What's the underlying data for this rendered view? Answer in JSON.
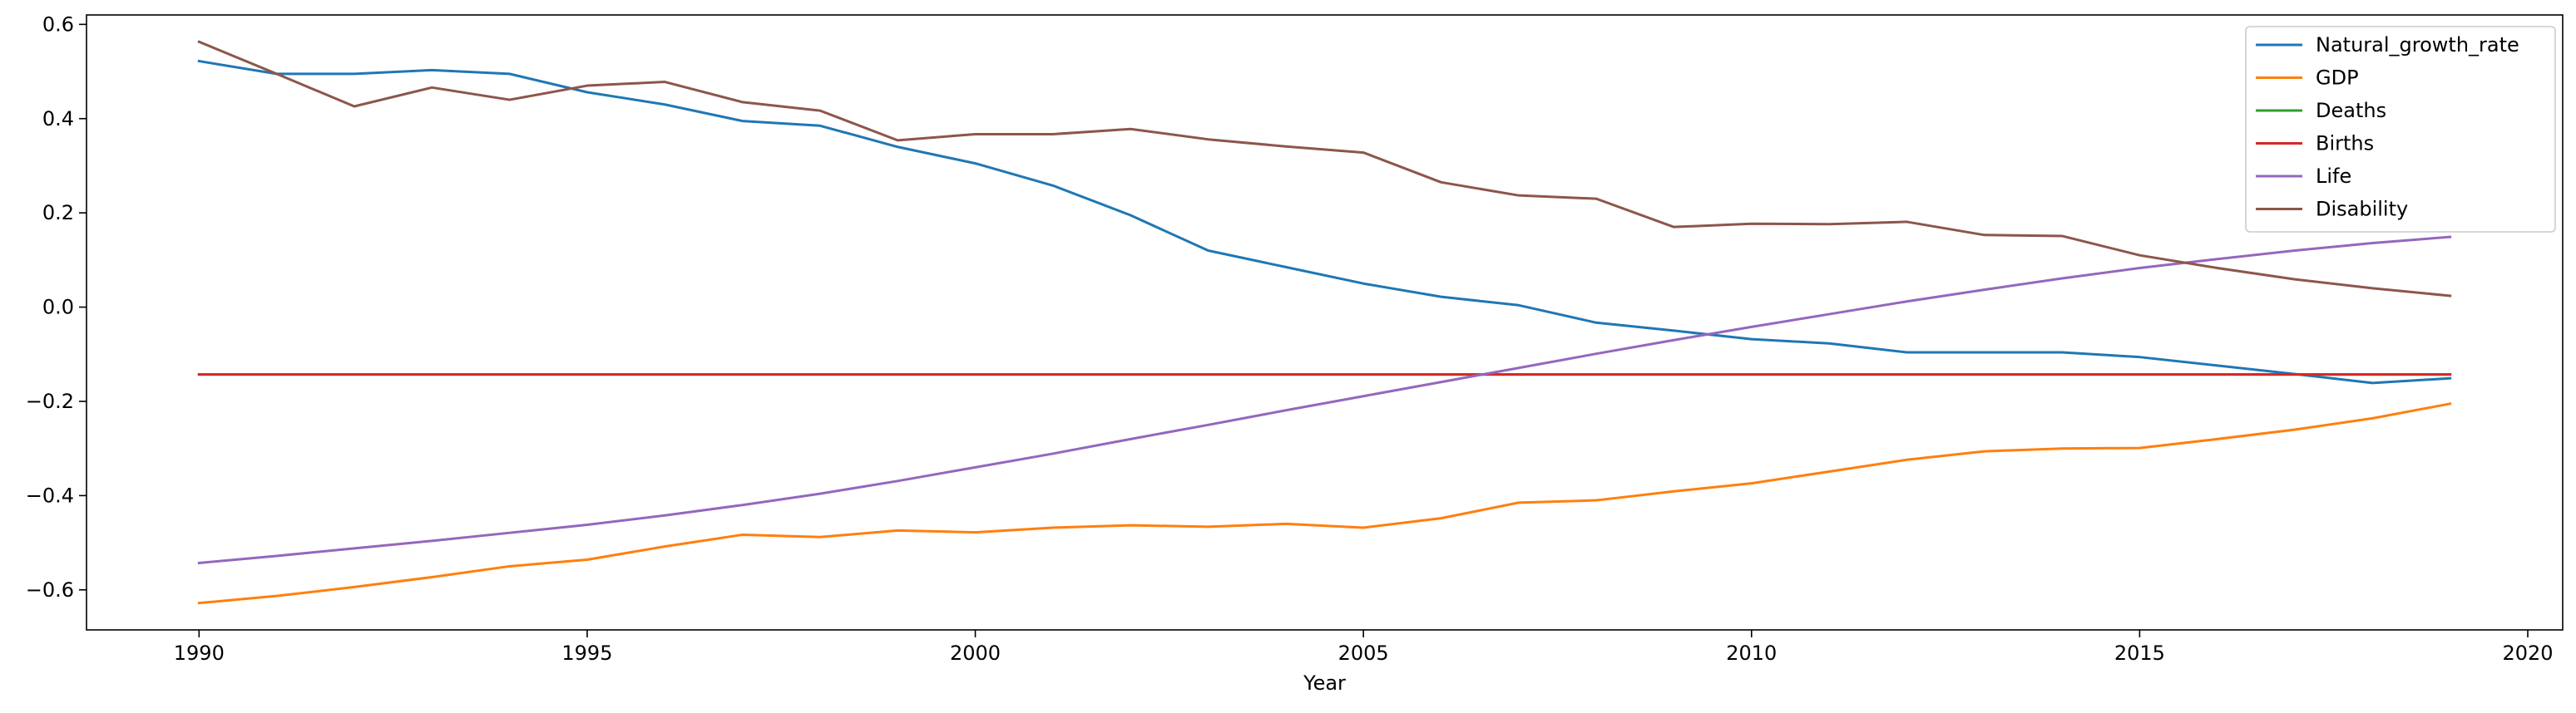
{
  "chart_data": {
    "type": "line",
    "title": "",
    "xlabel": "Year",
    "ylabel": "",
    "xlim": [
      1988.55,
      2020.45
    ],
    "ylim": [
      -0.685,
      0.62
    ],
    "xticks": [
      1990,
      1995,
      2000,
      2005,
      2010,
      2015,
      2020
    ],
    "yticks": [
      -0.6,
      -0.4,
      -0.2,
      0.0,
      0.2,
      0.4,
      0.6
    ],
    "xtick_labels": [
      "1990",
      "1995",
      "2000",
      "2005",
      "2010",
      "2015",
      "2020"
    ],
    "ytick_labels": [
      "−0.6",
      "−0.4",
      "−0.2",
      "0.0",
      "0.2",
      "0.4",
      "0.6"
    ],
    "grid": false,
    "legend_position": "top-right",
    "x": [
      1990,
      1991,
      1992,
      1993,
      1994,
      1995,
      1996,
      1997,
      1998,
      1999,
      2000,
      2001,
      2002,
      2003,
      2004,
      2005,
      2006,
      2007,
      2008,
      2009,
      2010,
      2011,
      2012,
      2013,
      2014,
      2015,
      2016,
      2017,
      2018,
      2019
    ],
    "series": [
      {
        "name": "Natural_growth_rate",
        "color": "#1f77b4",
        "values": [
          0.522,
          0.495,
          0.495,
          0.503,
          0.495,
          0.456,
          0.43,
          0.395,
          0.385,
          0.34,
          0.305,
          0.258,
          0.195,
          0.12,
          0.085,
          0.05,
          0.022,
          0.004,
          -0.033,
          -0.05,
          -0.068,
          -0.077,
          -0.096,
          -0.096,
          -0.096,
          -0.106,
          -0.124,
          -0.142,
          -0.161,
          -0.151
        ]
      },
      {
        "name": "GDP",
        "color": "#ff7f0e",
        "values": [
          -0.628,
          -0.613,
          -0.594,
          -0.573,
          -0.55,
          -0.536,
          -0.508,
          -0.483,
          -0.488,
          -0.474,
          -0.478,
          -0.468,
          -0.463,
          -0.466,
          -0.46,
          -0.468,
          -0.448,
          -0.415,
          -0.41,
          -0.391,
          -0.374,
          -0.349,
          -0.324,
          -0.306,
          -0.3,
          -0.299,
          -0.28,
          -0.26,
          -0.236,
          -0.205
        ]
      },
      {
        "name": "Deaths",
        "color": "#2ca02c",
        "values": [
          -0.143,
          -0.143,
          -0.143,
          -0.143,
          -0.143,
          -0.143,
          -0.143,
          -0.143,
          -0.143,
          -0.143,
          -0.143,
          -0.143,
          -0.143,
          -0.143,
          -0.143,
          -0.143,
          -0.143,
          -0.143,
          -0.143,
          -0.143,
          -0.143,
          -0.143,
          -0.143,
          -0.143,
          -0.143,
          -0.143,
          -0.143,
          -0.143,
          -0.143,
          -0.143
        ]
      },
      {
        "name": "Births",
        "color": "#d62728",
        "values": [
          -0.143,
          -0.143,
          -0.143,
          -0.143,
          -0.143,
          -0.143,
          -0.143,
          -0.143,
          -0.143,
          -0.143,
          -0.143,
          -0.143,
          -0.143,
          -0.143,
          -0.143,
          -0.143,
          -0.143,
          -0.143,
          -0.143,
          -0.143,
          -0.143,
          -0.143,
          -0.143,
          -0.143,
          -0.143,
          -0.143,
          -0.143,
          -0.143,
          -0.143,
          -0.143
        ]
      },
      {
        "name": "Life",
        "color": "#9467bd",
        "values": [
          -0.543,
          -0.528,
          -0.512,
          -0.496,
          -0.479,
          -0.462,
          -0.442,
          -0.42,
          -0.396,
          -0.369,
          -0.34,
          -0.311,
          -0.28,
          -0.25,
          -0.219,
          -0.189,
          -0.159,
          -0.129,
          -0.099,
          -0.07,
          -0.042,
          -0.015,
          0.012,
          0.037,
          0.061,
          0.083,
          0.102,
          0.12,
          0.136,
          0.149
        ]
      },
      {
        "name": "Disability",
        "color": "#8c564b",
        "values": [
          0.563,
          0.495,
          0.426,
          0.466,
          0.44,
          0.47,
          0.478,
          0.435,
          0.417,
          0.354,
          0.367,
          0.367,
          0.378,
          0.356,
          0.341,
          0.328,
          0.265,
          0.237,
          0.23,
          0.17,
          0.177,
          0.176,
          0.181,
          0.153,
          0.151,
          0.11,
          0.083,
          0.059,
          0.04,
          0.024
        ]
      }
    ]
  }
}
